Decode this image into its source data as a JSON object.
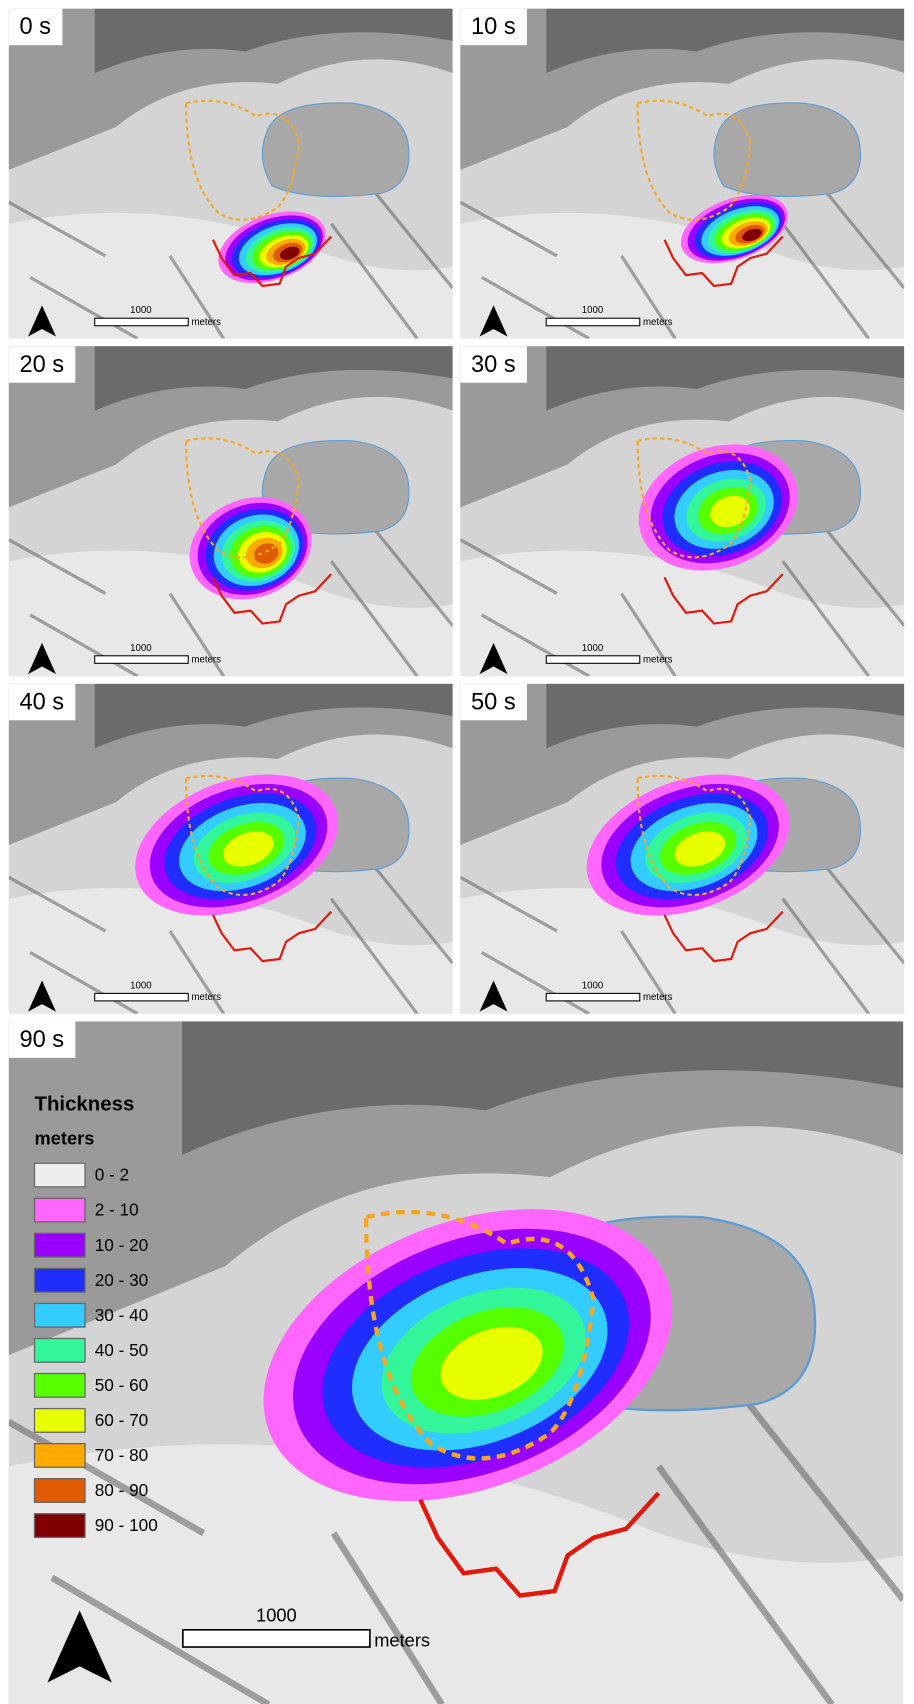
{
  "panels": [
    {
      "time": "0 s",
      "scale_label": "1000",
      "scale_unit": "meters"
    },
    {
      "time": "10 s",
      "scale_label": "1000",
      "scale_unit": "meters"
    },
    {
      "time": "20 s",
      "scale_label": "1000",
      "scale_unit": "meters"
    },
    {
      "time": "30 s",
      "scale_label": "1000",
      "scale_unit": "meters"
    },
    {
      "time": "40 s",
      "scale_label": "1000",
      "scale_unit": "meters"
    },
    {
      "time": "50 s",
      "scale_label": "1000",
      "scale_unit": "meters"
    },
    {
      "time": "90 s",
      "scale_label": "1000",
      "scale_unit": "meters"
    }
  ],
  "legend": {
    "title": "Thickness",
    "unit": "meters",
    "items": [
      {
        "label": "0 - 2",
        "color": "#eeeeee"
      },
      {
        "label": "2 - 10",
        "color": "#ff66ff"
      },
      {
        "label": "10 - 20",
        "color": "#9a00ff"
      },
      {
        "label": "20 - 30",
        "color": "#1f2eff"
      },
      {
        "label": "30 - 40",
        "color": "#33ccff"
      },
      {
        "label": "40 - 50",
        "color": "#33f59a"
      },
      {
        "label": "50 - 60",
        "color": "#55ff00"
      },
      {
        "label": "60 - 70",
        "color": "#e8ff00"
      },
      {
        "label": "70 - 80",
        "color": "#ffaa00"
      },
      {
        "label": "80 - 90",
        "color": "#e05a00"
      },
      {
        "label": "90 - 100",
        "color": "#800000"
      }
    ]
  }
}
